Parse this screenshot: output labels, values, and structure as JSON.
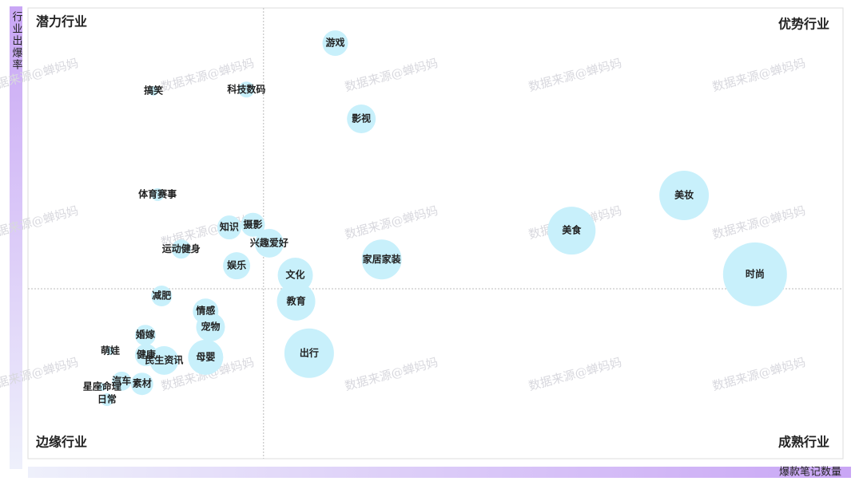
{
  "chart_data": {
    "type": "bubble",
    "quadrant_labels": {
      "top_left": "潜力行业",
      "top_right": "优势行业",
      "bottom_left": "边缘行业",
      "bottom_right": "成熟行业"
    },
    "x_label": "爆款笔记数量",
    "y_label": "行业出爆率",
    "watermark": "数据来源@蝉妈妈",
    "xlim": [
      0,
      100
    ],
    "ylim": [
      0,
      100
    ],
    "x_divider": 28.9,
    "y_divider": 37.7,
    "color": "#c8f0fb",
    "labels": [
      "游戏",
      "搞笑",
      "科技数码",
      "影视",
      "体育赛事",
      "知识",
      "摄影",
      "兴趣爱好",
      "运动健身",
      "娱乐",
      "家居家装",
      "文化",
      "美食",
      "美妆",
      "时尚",
      "教育",
      "减肥",
      "情感",
      "宠物",
      "婚嫁",
      "萌娃",
      "健康",
      "民生资讯",
      "母婴",
      "出行",
      "汽车",
      "素材",
      "星座命理",
      "日常"
    ],
    "x": [
      37.7,
      15.4,
      26.8,
      40.9,
      15.9,
      24.7,
      27.6,
      29.6,
      18.8,
      25.6,
      43.4,
      32.8,
      66.7,
      80.5,
      89.2,
      32.9,
      16.4,
      21.8,
      22.4,
      14.4,
      10.1,
      14.5,
      16.7,
      21.8,
      34.5,
      11.5,
      14.0,
      9.1,
      9.7
    ],
    "y": [
      92.2,
      81.6,
      81.9,
      75.4,
      58.6,
      51.3,
      51.9,
      47.8,
      46.5,
      42.8,
      44.2,
      40.7,
      50.6,
      58.4,
      40.9,
      34.9,
      36.1,
      32.7,
      29.2,
      27.4,
      23.9,
      23.0,
      21.8,
      22.5,
      23.4,
      17.2,
      16.6,
      15.9,
      13.1
    ],
    "sizes": [
      16,
      6,
      10,
      18,
      8,
      15,
      15,
      18,
      12,
      17,
      25,
      22,
      30,
      31,
      40,
      24,
      13,
      16,
      18,
      13,
      5,
      14,
      18,
      22,
      31,
      12,
      14,
      5,
      8
    ]
  }
}
